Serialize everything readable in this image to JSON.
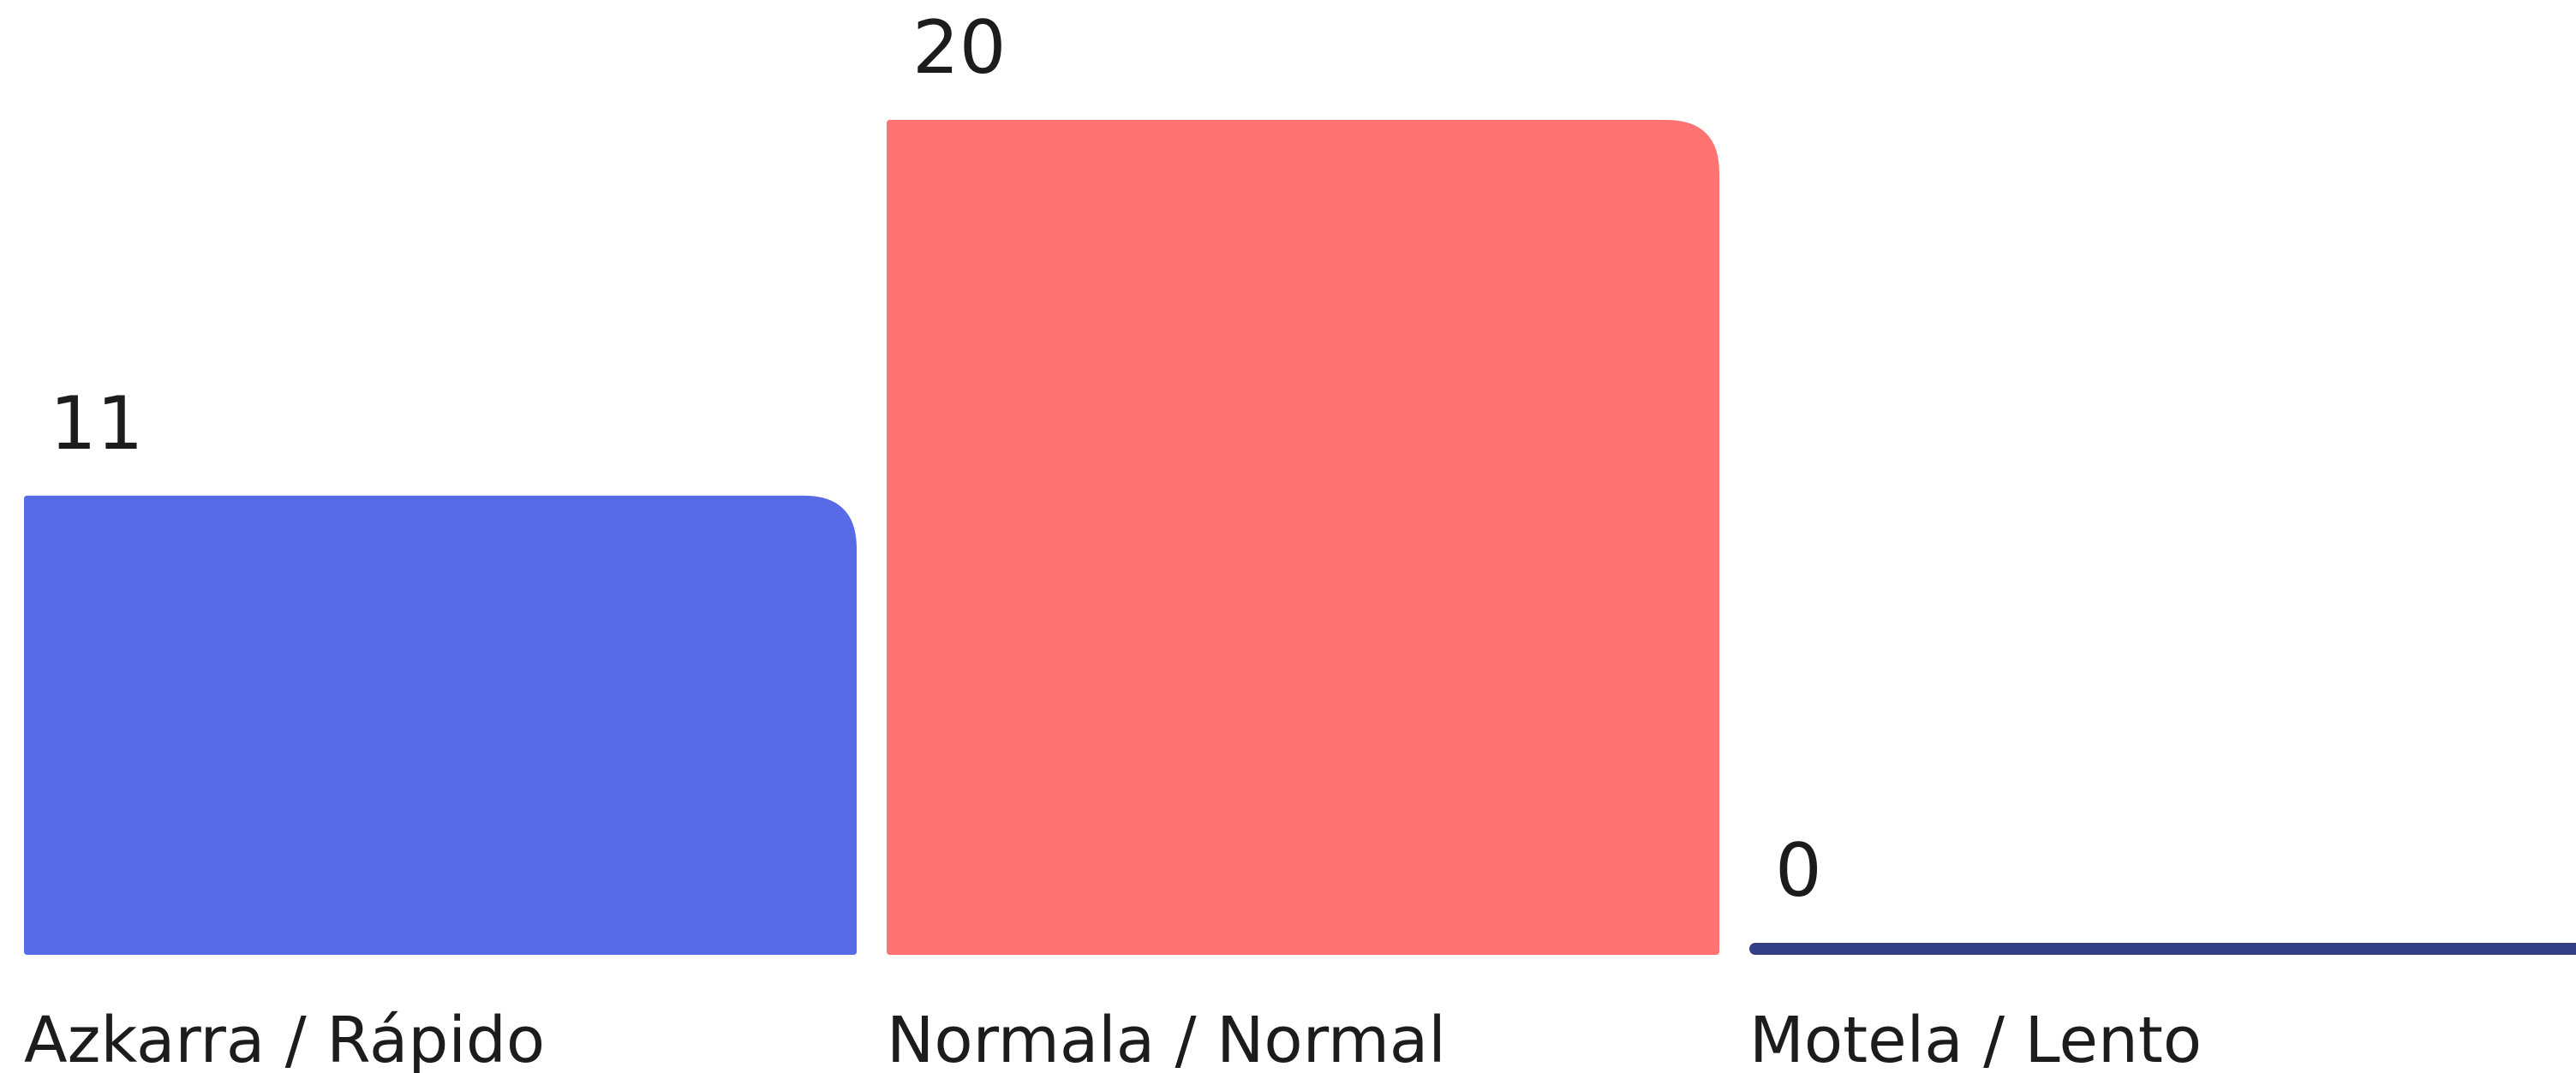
{
  "chart_data": {
    "type": "bar",
    "categories": [
      "Azkarra / Rápido",
      "Normala / Normal",
      "Motela / Lento"
    ],
    "values": [
      11,
      20,
      0
    ],
    "colors": [
      "#586be6",
      "#ff7473",
      "#343f86"
    ],
    "title": "",
    "xlabel": "",
    "ylabel": "",
    "ylim": [
      0,
      20
    ],
    "grid": false,
    "data_labels": true
  }
}
